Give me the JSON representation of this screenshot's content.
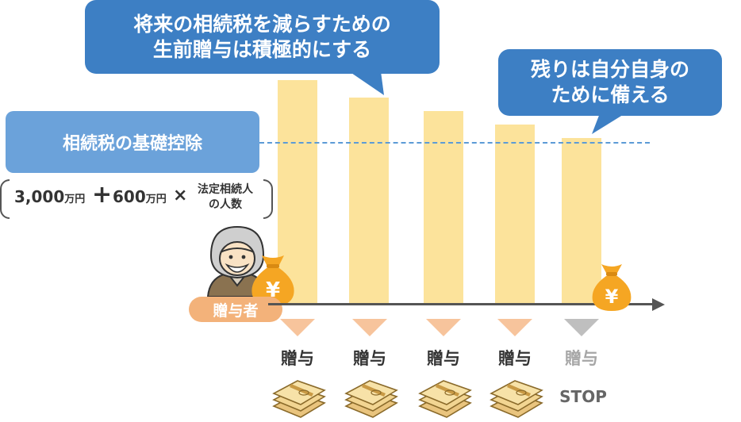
{
  "callouts": {
    "top": {
      "line1": "将来の相続税を減らすための",
      "line2": "生前贈与は積極的にする"
    },
    "right": {
      "line1": "残りは自分自身の",
      "line2": "ために備える"
    }
  },
  "basic_deduction": {
    "label": "相続税の基礎控除",
    "formula": {
      "base_amount": "3,000",
      "base_unit": "万円",
      "plus": "+",
      "per_heir_amount": "600",
      "per_heir_unit": "万円",
      "times": "×",
      "heirs_line1": "法定相続人",
      "heirs_line2": "の人数"
    }
  },
  "donor": {
    "label": "贈与者"
  },
  "money_bag_symbol": "¥",
  "gifts": [
    {
      "label": "贈与",
      "active": true
    },
    {
      "label": "贈与",
      "active": true
    },
    {
      "label": "贈与",
      "active": true
    },
    {
      "label": "贈与",
      "active": true
    },
    {
      "label": "贈与",
      "active": false,
      "note": "STOP"
    }
  ],
  "chart_data": {
    "type": "bar",
    "categories": [
      "",
      "",
      "",
      "",
      ""
    ],
    "values": [
      100,
      92,
      86,
      80,
      74
    ],
    "threshold": 74,
    "xlabel": "",
    "ylabel": ""
  },
  "colors": {
    "callout": "#3d7fc4",
    "deduction": "#6ba2da",
    "bar": "#fce39b",
    "donor_badge": "#f3b27a",
    "triangle_active": "#f7c49c",
    "triangle_inactive": "#bfbfbf",
    "money_bag": "#f5a623"
  }
}
